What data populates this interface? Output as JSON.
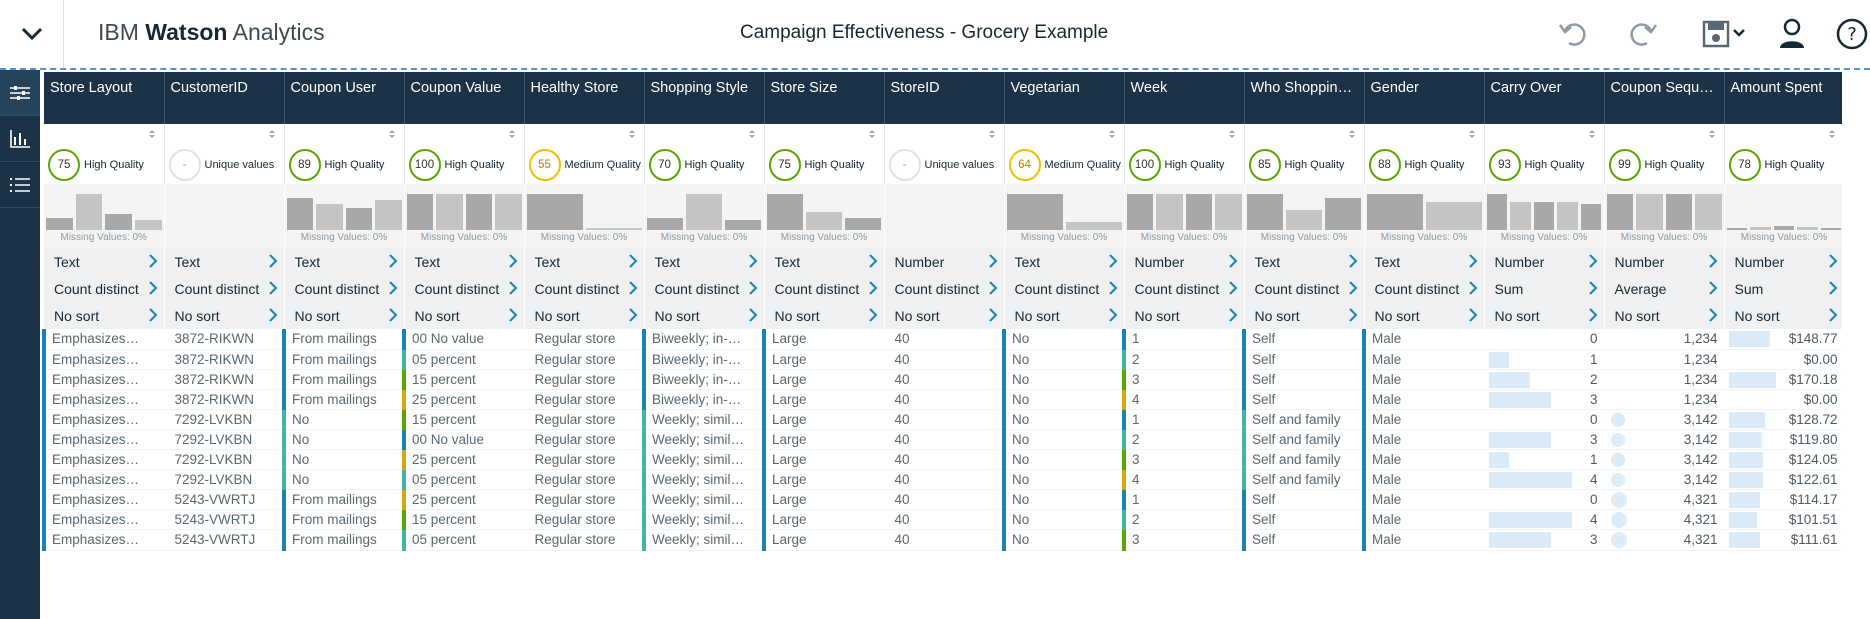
{
  "header": {
    "app_title_prefix": "IBM",
    "app_title_bold": "Watson",
    "app_title_suffix": "Analytics",
    "document_title": "Campaign Effectiveness - Grocery Example"
  },
  "columns": [
    {
      "name": "Store Layout",
      "quality": "75",
      "quality_label": "High Quality",
      "level": "high",
      "hist": [
        0.3,
        0.9,
        0.4,
        0.25
      ],
      "missing": "Missing Values: 0%",
      "type": "Text",
      "agg": "Count distinct",
      "sort": "No sort"
    },
    {
      "name": "CustomerID",
      "quality": "-",
      "quality_label": "Unique values",
      "level": "unique",
      "hist": [],
      "missing": "",
      "type": "Text",
      "agg": "Count distinct",
      "sort": "No sort"
    },
    {
      "name": "Coupon User",
      "quality": "89",
      "quality_label": "High Quality",
      "level": "high",
      "hist": [
        0.8,
        0.65,
        0.55,
        0.75
      ],
      "missing": "Missing Values: 0%",
      "type": "Text",
      "agg": "Count distinct",
      "sort": "No sort"
    },
    {
      "name": "Coupon Value",
      "quality": "100",
      "quality_label": "High Quality",
      "level": "high",
      "hist": [
        0.9,
        0.9,
        0.9,
        0.9
      ],
      "missing": "Missing Values: 0%",
      "type": "Text",
      "agg": "Count distinct",
      "sort": "No sort"
    },
    {
      "name": "Healthy Store",
      "quality": "55",
      "quality_label": "Medium Quality",
      "level": "medium",
      "hist": [
        0.9,
        0.05
      ],
      "missing": "Missing Values: 0%",
      "type": "Text",
      "agg": "Count distinct",
      "sort": "No sort"
    },
    {
      "name": "Shopping Style",
      "quality": "70",
      "quality_label": "High Quality",
      "level": "high",
      "hist": [
        0.3,
        0.9,
        0.25
      ],
      "missing": "Missing Values: 0%",
      "type": "Text",
      "agg": "Count distinct",
      "sort": "No sort"
    },
    {
      "name": "Store Size",
      "quality": "75",
      "quality_label": "High Quality",
      "level": "high",
      "hist": [
        0.9,
        0.45,
        0.3
      ],
      "missing": "Missing Values: 0%",
      "type": "Text",
      "agg": "Count distinct",
      "sort": "No sort"
    },
    {
      "name": "StoreID",
      "quality": "-",
      "quality_label": "Unique values",
      "level": "unique",
      "hist": [],
      "missing": "",
      "type": "Number",
      "agg": "Count distinct",
      "sort": "No sort"
    },
    {
      "name": "Vegetarian",
      "quality": "64",
      "quality_label": "Medium Quality",
      "level": "medium",
      "hist": [
        0.9,
        0.2
      ],
      "missing": "Missing Values: 0%",
      "type": "Text",
      "agg": "Count distinct",
      "sort": "No sort"
    },
    {
      "name": "Week",
      "quality": "100",
      "quality_label": "High Quality",
      "level": "high",
      "hist": [
        0.9,
        0.9,
        0.9,
        0.9
      ],
      "missing": "Missing Values: 0%",
      "type": "Number",
      "agg": "Count distinct",
      "sort": "No sort"
    },
    {
      "name": "Who Shopping…",
      "quality": "85",
      "quality_label": "High Quality",
      "level": "high",
      "hist": [
        0.9,
        0.5,
        0.8
      ],
      "missing": "Missing Values: 0%",
      "type": "Text",
      "agg": "Count distinct",
      "sort": "No sort"
    },
    {
      "name": "Gender",
      "quality": "88",
      "quality_label": "High Quality",
      "level": "high",
      "hist": [
        0.9,
        0.7
      ],
      "missing": "Missing Values: 0%",
      "type": "Text",
      "agg": "Count distinct",
      "sort": "No sort"
    },
    {
      "name": "Carry Over",
      "quality": "93",
      "quality_label": "High Quality",
      "level": "high",
      "hist": [
        0.9,
        0.7,
        0.7,
        0.7,
        0.65
      ],
      "missing": "Missing Values: 0%",
      "type": "Number",
      "agg": "Sum",
      "sort": "No sort"
    },
    {
      "name": "Coupon Sequ…",
      "quality": "99",
      "quality_label": "High Quality",
      "level": "high",
      "hist": [
        0.9,
        0.9,
        0.9,
        0.9
      ],
      "missing": "Missing Values: 0%",
      "type": "Number",
      "agg": "Average",
      "sort": "No sort"
    },
    {
      "name": "Amount Spent",
      "quality": "78",
      "quality_label": "High Quality",
      "level": "high",
      "hist": [
        0.05,
        0.08,
        0.1,
        0.08,
        0.05
      ],
      "missing": "Missing Values: 0%",
      "type": "Number",
      "agg": "Sum",
      "sort": "No sort"
    }
  ],
  "rows": [
    [
      "Emphasizes…",
      "3872-RIKWN",
      "From mailings",
      "00 No value",
      "Regular store",
      "Biweekly; in-…",
      "Large",
      "40",
      "No",
      "1",
      "Self",
      "Male",
      "0",
      "1,234",
      "$148.77"
    ],
    [
      "Emphasizes…",
      "3872-RIKWN",
      "From mailings",
      "05 percent",
      "Regular store",
      "Biweekly; in-…",
      "Large",
      "40",
      "No",
      "2",
      "Self",
      "Male",
      "1",
      "1,234",
      "$0.00"
    ],
    [
      "Emphasizes…",
      "3872-RIKWN",
      "From mailings",
      "15 percent",
      "Regular store",
      "Biweekly; in-…",
      "Large",
      "40",
      "No",
      "3",
      "Self",
      "Male",
      "2",
      "1,234",
      "$170.18"
    ],
    [
      "Emphasizes…",
      "3872-RIKWN",
      "From mailings",
      "25 percent",
      "Regular store",
      "Biweekly; in-…",
      "Large",
      "40",
      "No",
      "4",
      "Self",
      "Male",
      "3",
      "1,234",
      "$0.00"
    ],
    [
      "Emphasizes…",
      "7292-LVKBN",
      "No",
      "15 percent",
      "Regular store",
      "Weekly; simil…",
      "Large",
      "40",
      "No",
      "1",
      "Self and family",
      "Male",
      "0",
      "3,142",
      "$128.72"
    ],
    [
      "Emphasizes…",
      "7292-LVKBN",
      "No",
      "00 No value",
      "Regular store",
      "Weekly; simil…",
      "Large",
      "40",
      "No",
      "2",
      "Self and family",
      "Male",
      "3",
      "3,142",
      "$119.80"
    ],
    [
      "Emphasizes…",
      "7292-LVKBN",
      "No",
      "25 percent",
      "Regular store",
      "Weekly; simil…",
      "Large",
      "40",
      "No",
      "3",
      "Self and family",
      "Male",
      "1",
      "3,142",
      "$124.05"
    ],
    [
      "Emphasizes…",
      "7292-LVKBN",
      "No",
      "05 percent",
      "Regular store",
      "Weekly; simil…",
      "Large",
      "40",
      "No",
      "4",
      "Self and family",
      "Male",
      "4",
      "3,142",
      "$122.61"
    ],
    [
      "Emphasizes…",
      "5243-VWRTJ",
      "From mailings",
      "25 percent",
      "Regular store",
      "Weekly; simil…",
      "Large",
      "40",
      "No",
      "1",
      "Self",
      "Male",
      "0",
      "4,321",
      "$114.17"
    ],
    [
      "Emphasizes…",
      "5243-VWRTJ",
      "From mailings",
      "15 percent",
      "Regular store",
      "Weekly; simil…",
      "Large",
      "40",
      "No",
      "2",
      "Self",
      "Male",
      "4",
      "4,321",
      "$101.51"
    ],
    [
      "Emphasizes…",
      "5243-VWRTJ",
      "From mailings",
      "05 percent",
      "Regular store",
      "Weekly; simil…",
      "Large",
      "40",
      "No",
      "3",
      "Self",
      "Male",
      "3",
      "4,321",
      "$111.61"
    ]
  ],
  "colors": {
    "navy": "#1c3347",
    "high_quality": "#5aa700",
    "medium_quality": "#efc100",
    "bar_fill": "#dbecf8",
    "tag_blue": "#1d83b5",
    "tag_teal": "#41b6a6",
    "tag_green": "#5aa700",
    "tag_gold": "#d8a411"
  },
  "icons": {
    "menu": "chevron-down-icon",
    "undo": "undo-icon",
    "redo": "redo-icon",
    "save": "save-icon",
    "user": "user-icon",
    "help": "help-icon",
    "sliders": "sliders-icon",
    "chart": "bar-chart-icon",
    "list": "list-icon"
  }
}
